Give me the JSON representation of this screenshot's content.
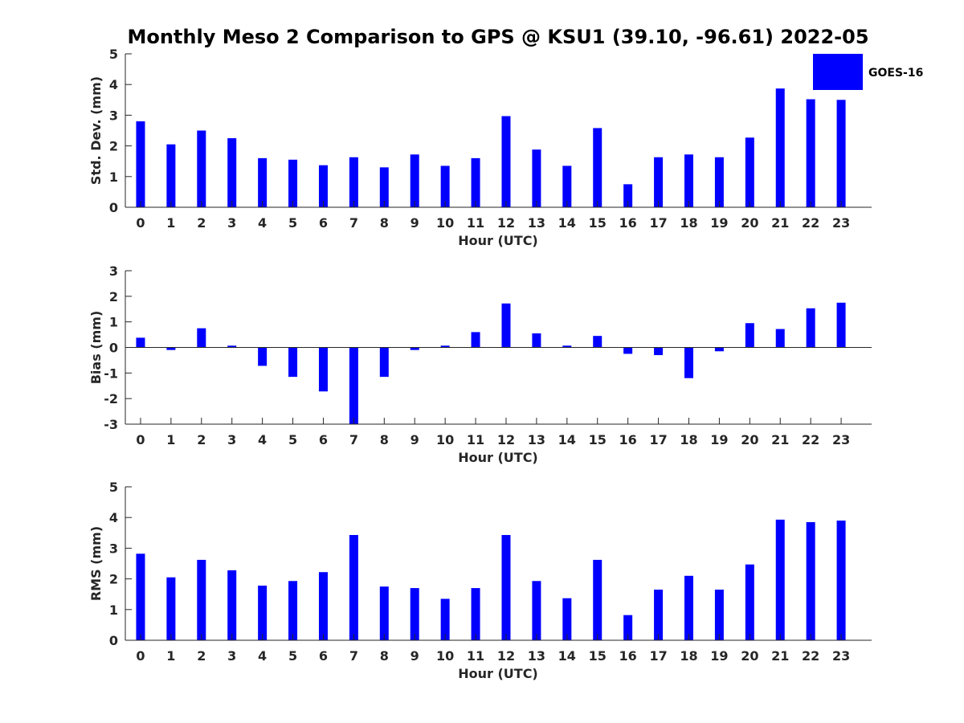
{
  "title": "Monthly Meso 2 Comparison to GPS @ KSU1 (39.10, -96.61) 2022-05",
  "legend": {
    "label": "GOES-16",
    "color": "#0000ff"
  },
  "chart_data": [
    {
      "type": "bar",
      "xlabel": "Hour (UTC)",
      "ylabel": "Std. Dev. (mm)",
      "ylim": [
        0,
        5
      ],
      "yticks": [
        "0",
        "1",
        "2",
        "3",
        "4",
        "5"
      ],
      "categories": [
        "0",
        "1",
        "2",
        "3",
        "4",
        "5",
        "6",
        "7",
        "8",
        "9",
        "10",
        "11",
        "12",
        "13",
        "14",
        "15",
        "16",
        "17",
        "18",
        "19",
        "20",
        "21",
        "22",
        "23"
      ],
      "series": [
        {
          "name": "GOES-16",
          "color": "#0000ff",
          "values": [
            2.8,
            2.05,
            2.5,
            2.25,
            1.6,
            1.55,
            1.37,
            1.63,
            1.3,
            1.72,
            1.35,
            1.6,
            2.97,
            1.88,
            1.35,
            2.58,
            0.75,
            1.63,
            1.72,
            1.63,
            2.27,
            3.87,
            3.52,
            3.5
          ]
        }
      ],
      "legend_position": "top-right"
    },
    {
      "type": "bar",
      "xlabel": "Hour (UTC)",
      "ylabel": "Bias (mm)",
      "ylim": [
        -3,
        3
      ],
      "yticks": [
        "-3",
        "-2",
        "-1",
        "0",
        "1",
        "2",
        "3"
      ],
      "categories": [
        "0",
        "1",
        "2",
        "3",
        "4",
        "5",
        "6",
        "7",
        "8",
        "9",
        "10",
        "11",
        "12",
        "13",
        "14",
        "15",
        "16",
        "17",
        "18",
        "19",
        "20",
        "21",
        "22",
        "23"
      ],
      "series": [
        {
          "name": "GOES-16",
          "color": "#0000ff",
          "values": [
            0.38,
            -0.1,
            0.75,
            0.07,
            -0.72,
            -1.15,
            -1.72,
            -3.0,
            -1.15,
            -0.1,
            0.07,
            0.6,
            1.72,
            0.55,
            0.07,
            0.45,
            -0.25,
            -0.3,
            -1.2,
            -0.15,
            0.95,
            0.72,
            1.53,
            1.75
          ]
        }
      ]
    },
    {
      "type": "bar",
      "xlabel": "Hour (UTC)",
      "ylabel": "RMS (mm)",
      "ylim": [
        0,
        5
      ],
      "yticks": [
        "0",
        "1",
        "2",
        "3",
        "4",
        "5"
      ],
      "categories": [
        "0",
        "1",
        "2",
        "3",
        "4",
        "5",
        "6",
        "7",
        "8",
        "9",
        "10",
        "11",
        "12",
        "13",
        "14",
        "15",
        "16",
        "17",
        "18",
        "19",
        "20",
        "21",
        "22",
        "23"
      ],
      "series": [
        {
          "name": "GOES-16",
          "color": "#0000ff",
          "values": [
            2.82,
            2.05,
            2.62,
            2.28,
            1.78,
            1.93,
            2.22,
            3.43,
            1.75,
            1.7,
            1.35,
            1.7,
            3.43,
            1.93,
            1.37,
            2.62,
            0.82,
            1.65,
            2.1,
            1.65,
            2.47,
            3.93,
            3.85,
            3.9
          ]
        }
      ]
    }
  ]
}
